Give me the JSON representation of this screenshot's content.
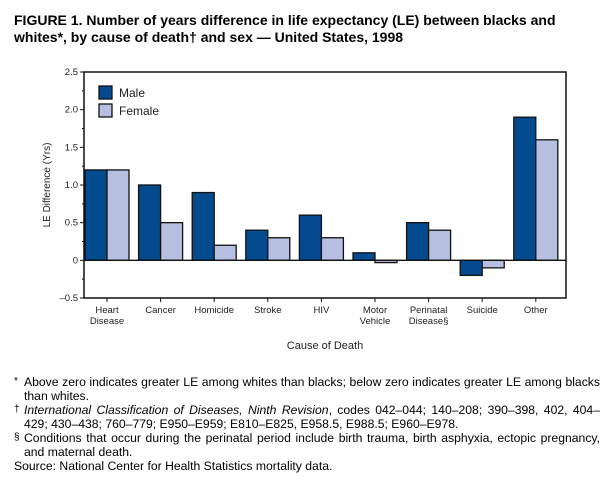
{
  "title": "FIGURE 1. Number of years difference in life expectancy (LE) between blacks and whites*, by cause of death† and sex — United States, 1998",
  "chart_data": {
    "type": "bar",
    "title": "FIGURE 1. Number of years difference in life expectancy (LE) between blacks and whites*, by cause of death† and sex — United States, 1998",
    "xlabel": "Cause of Death",
    "ylabel": "LE Difference (Yrs)",
    "ylim": [
      -0.5,
      2.5
    ],
    "yticks": [
      "2.5",
      "2.0",
      "1.5",
      "1.0",
      "0.5",
      "0",
      "–0.5"
    ],
    "ytick_values": [
      2.5,
      2.0,
      1.5,
      1.0,
      0.5,
      0,
      -0.5
    ],
    "categories": [
      [
        "Heart",
        "Disease"
      ],
      [
        "Cancer"
      ],
      [
        "Homicide"
      ],
      [
        "Stroke"
      ],
      [
        "HIV"
      ],
      [
        "Motor",
        "Vehicle"
      ],
      [
        "Perinatal",
        "Disease§"
      ],
      [
        "Suicide"
      ],
      [
        "Other"
      ]
    ],
    "series": [
      {
        "name": "Male",
        "color": "#034a8f",
        "values": [
          1.2,
          1.0,
          0.9,
          0.4,
          0.6,
          0.1,
          0.5,
          -0.2,
          1.9
        ]
      },
      {
        "name": "Female",
        "color": "#b6bfdf",
        "values": [
          1.2,
          0.5,
          0.2,
          0.3,
          0.3,
          -0.03,
          0.4,
          -0.1,
          1.6
        ]
      }
    ],
    "legend": "top-left",
    "grid": false
  },
  "notes": [
    {
      "mark": "*",
      "text": "Above zero indicates greater LE among whites than blacks; below zero indicates greater LE among blacks than whites."
    },
    {
      "mark": "†",
      "italic": "International Classification of Diseases, Ninth Revision",
      "text": ", codes 042–044; 140–208; 390–398, 402, 404–429; 430–438; 760–779; E950–E959; E810–E825, E958.5, E988.5; E960–E978."
    },
    {
      "mark": "§",
      "text": "Conditions that occur during the perinatal period include birth trauma, birth asphyxia, ectopic pregnancy, and maternal death."
    }
  ],
  "source": "Source: National Center for Health Statistics mortality data."
}
